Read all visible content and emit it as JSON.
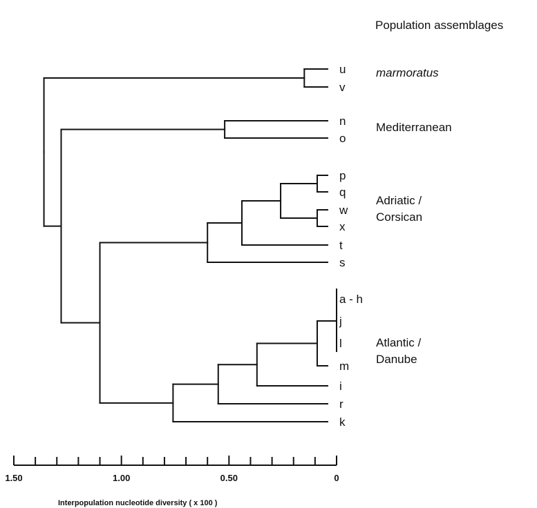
{
  "header": {
    "title": "Population assemblages"
  },
  "tree": {
    "leaves": [
      "u",
      "v",
      "n",
      "o",
      "p",
      "q",
      "w",
      "x",
      "t",
      "s",
      "a - h",
      "j",
      "l",
      "m",
      "i",
      "r",
      "k"
    ],
    "tip_value": 0,
    "nodes": [
      {
        "children": [
          "u",
          "v"
        ],
        "height": 0.15
      },
      {
        "children": [
          "n",
          "o"
        ],
        "height": 0.52
      },
      {
        "children": [
          "p",
          "q"
        ],
        "height": 0.09
      },
      {
        "children": [
          "w",
          "x"
        ],
        "height": 0.09
      },
      {
        "children": [
          "p-q",
          "w-x"
        ],
        "height": 0.26
      },
      {
        "children": [
          "pqwx",
          "t"
        ],
        "height": 0.44
      },
      {
        "children": [
          "pqwxt",
          "s"
        ],
        "height": 0.6
      },
      {
        "children": [
          "a - h",
          "j",
          "l"
        ],
        "height": 0.0
      },
      {
        "children": [
          "ahjl",
          "m"
        ],
        "height": 0.09
      },
      {
        "children": [
          "ahjlm",
          "i"
        ],
        "height": 0.37
      },
      {
        "children": [
          "ahjlmi",
          "r"
        ],
        "height": 0.55
      },
      {
        "children": [
          "ahjlmir",
          "k"
        ],
        "height": 0.76
      },
      {
        "children": [
          "adriatic",
          "atlantic"
        ],
        "height": 1.1
      },
      {
        "children": [
          "mediterranean",
          "adriatic-atlantic"
        ],
        "height": 1.28
      },
      {
        "children": [
          "marmoratus",
          "rest"
        ],
        "height": 1.36
      }
    ]
  },
  "groups": [
    {
      "lines": [
        "marmoratus"
      ],
      "italic": true
    },
    {
      "lines": [
        "Mediterranean"
      ],
      "italic": false
    },
    {
      "lines": [
        "Adriatic /",
        "Corsican"
      ],
      "italic": false
    },
    {
      "lines": [
        "Atlantic /",
        "Danube"
      ],
      "italic": false
    }
  ],
  "axis": {
    "range": [
      1.5,
      0
    ],
    "tick_labels": [
      "1.50",
      "1.00",
      "0.50",
      "0"
    ],
    "label": "Interpopulation nucleotide diversity ( x 100 )"
  }
}
